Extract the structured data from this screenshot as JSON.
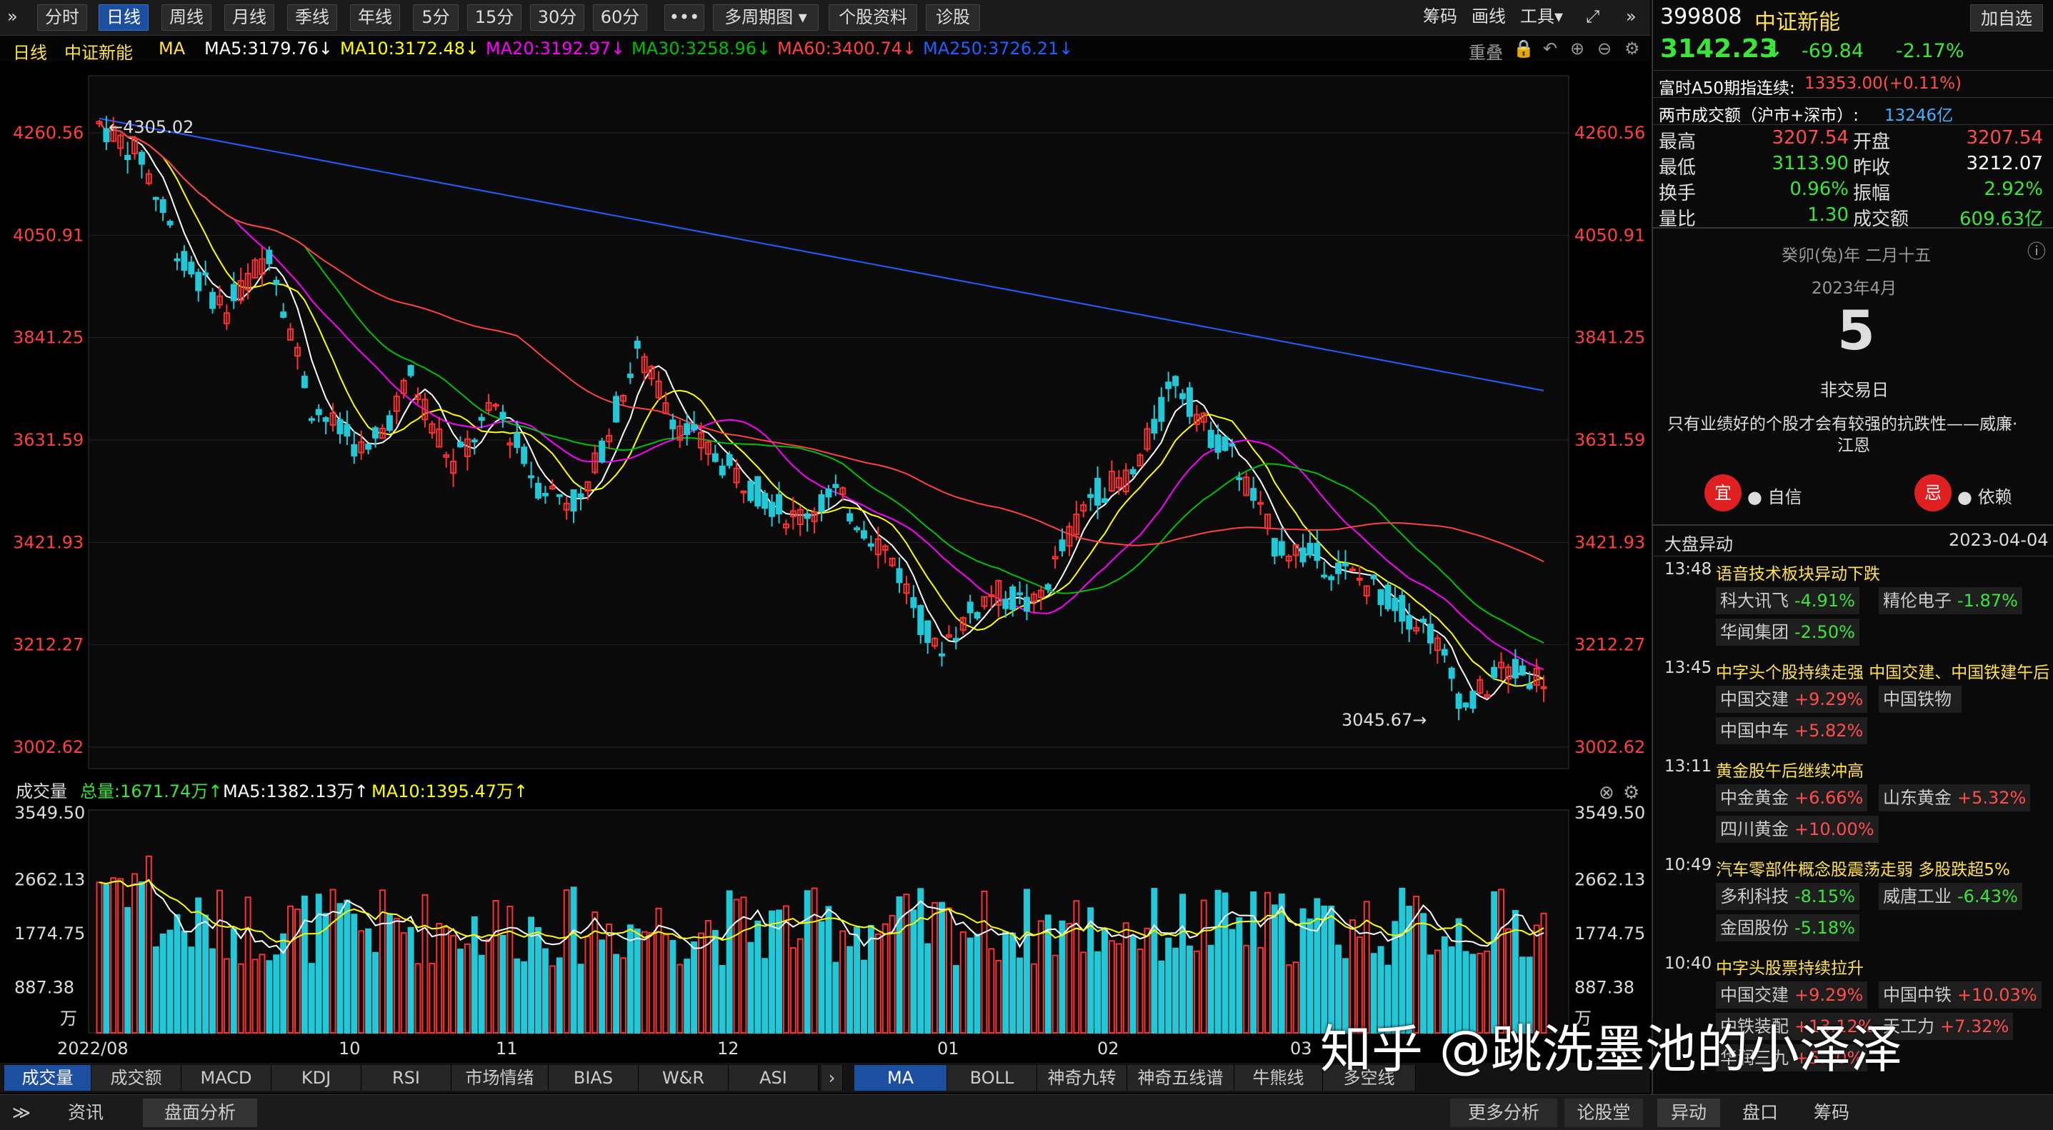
{
  "toolbar": {
    "collapse_icon": "»",
    "periods": [
      "分时",
      "日线",
      "周线",
      "月线",
      "季线",
      "年线",
      "5分",
      "15分",
      "30分",
      "60分"
    ],
    "active_period": "日线",
    "more": "•••",
    "multi": "多周期图",
    "profile": "个股资料",
    "diagnose": "诊股",
    "chips": "筹码",
    "draw": "画线",
    "tools": "工具",
    "expand_icon": "⤢",
    "next_icon": "»"
  },
  "maline": {
    "period": "日线",
    "name": "中证新能",
    "ma": "MA",
    "ma5": "MA5:3179.76↓",
    "ma10": "MA10:3172.48↓",
    "ma20": "MA20:3192.97↓",
    "ma30": "MA30:3258.96↓",
    "ma60": "MA60:3400.74↓",
    "ma250": "MA250:3726.21↓",
    "weight": "重叠"
  },
  "colors": {
    "ma5": "#ffffff",
    "ma10": "#ffff00",
    "ma20": "#ff00ff",
    "ma30": "#00c000",
    "ma60": "#ff4040",
    "ma250": "#2060ff",
    "up": "#ff3030",
    "down": "#20c8d8",
    "price": "#ff4040"
  },
  "chart_data": {
    "type": "candlestick",
    "y_ticks": [
      "4260.56",
      "4050.91",
      "3841.25",
      "3631.59",
      "3421.93",
      "3212.27",
      "3002.62"
    ],
    "ylim": [
      3002.62,
      4260.56
    ],
    "high_label": "←4305.02",
    "low_label": "3045.67→",
    "x_ticks": [
      "2022/08",
      "10",
      "11",
      "12",
      "01",
      "02",
      "03"
    ],
    "ohlc_sample": {
      "n": 160,
      "open_first": 4290,
      "close_last": 3142.23
    },
    "volume": {
      "title": "成交量",
      "total": "总量:1671.74万↑",
      "ma5": "MA5:1382.13万↑",
      "ma10": "MA10:1395.47万↑",
      "y_ticks": [
        "3549.50",
        "2662.13",
        "1774.75",
        "887.38",
        "万"
      ],
      "ylim": [
        0,
        3549.5
      ]
    }
  },
  "indicators": {
    "left": [
      "成交量",
      "成交额",
      "MACD",
      "KDJ",
      "RSI",
      "市场情绪",
      "BIAS",
      "W&R",
      "ASI"
    ],
    "arrow": "›",
    "right": [
      "MA",
      "BOLL",
      "神奇九转",
      "神奇五线谱",
      "牛熊线",
      "多空线"
    ],
    "active_left": "成交量",
    "active_right": "MA"
  },
  "bottombar": {
    "collapse": "≫",
    "news": "资讯",
    "analysis": "盘面分析",
    "more_analysis": "更多分析",
    "forum": "论股堂",
    "tabs": [
      "异动",
      "盘口",
      "筹码"
    ]
  },
  "quote": {
    "code": "399808",
    "name": "中证新能",
    "add": "加自选",
    "price": "3142.23",
    "arrow": "↓",
    "change": "-69.84",
    "pct": "-2.17%",
    "a50_label": "富时A50期指连续:",
    "a50_value": "13353.00(+0.11%)",
    "turnover_label": "两市成交额（沪市+深市）:",
    "turnover_value": "13246亿",
    "stats": [
      {
        "k": "最高",
        "v": "3207.54",
        "c": "red"
      },
      {
        "k": "开盘",
        "v": "3207.54",
        "c": "red"
      },
      {
        "k": "最低",
        "v": "3113.90",
        "c": "green"
      },
      {
        "k": "昨收",
        "v": "3212.07",
        "c": "white"
      },
      {
        "k": "换手",
        "v": "0.96%",
        "c": "green"
      },
      {
        "k": "振幅",
        "v": "2.92%",
        "c": "green"
      },
      {
        "k": "量比",
        "v": "1.30",
        "c": "green"
      },
      {
        "k": "成交额",
        "v": "609.63亿",
        "c": "green"
      }
    ]
  },
  "calendar": {
    "lunar": "癸卯(兔)年 二月十五",
    "info_icon": "ⓘ",
    "month": "2023年4月",
    "day": "5",
    "status": "非交易日",
    "quote1": "只有业绩好的个股才会有较强的抗跌性——威廉·",
    "quote2": "江恩",
    "good": "宜",
    "good_label": "自信",
    "bad": "忌",
    "bad_label": "依赖"
  },
  "alerts": {
    "title": "大盘异动",
    "date": "2023-04-04",
    "items": [
      {
        "time": "13:48",
        "title": "语音技术板块异动下跌",
        "tags": [
          [
            "科大讯飞",
            "-4.91%"
          ],
          [
            "精伦电子",
            "-1.87%"
          ],
          [
            "华闻集团",
            "-2.50%"
          ]
        ]
      },
      {
        "time": "13:45",
        "title": "中字头个股持续走强 中国交建、中国铁建午后",
        "tags": [
          [
            "中国交建",
            "+9.29%"
          ],
          [
            "中国铁物",
            ""
          ],
          [
            "中国中车",
            "+5.82%"
          ]
        ]
      },
      {
        "time": "13:11",
        "title": "黄金股午后继续冲高",
        "tags": [
          [
            "中金黄金",
            "+6.66%"
          ],
          [
            "山东黄金",
            "+5.32%"
          ],
          [
            "四川黄金",
            "+10.00%"
          ]
        ]
      },
      {
        "time": "10:49",
        "title": "汽车零部件概念股震荡走弱 多股跌超5%",
        "tags": [
          [
            "多利科技",
            "-8.15%"
          ],
          [
            "威唐工业",
            "-6.43%"
          ],
          [
            "金固股份",
            "-5.18%"
          ]
        ]
      },
      {
        "time": "10:40",
        "title": "中字头股票持续拉升",
        "tags": [
          [
            "中国交建",
            "+9.29%"
          ],
          [
            "中国中铁",
            "+10.03%"
          ],
          [
            "中铁装配",
            "+13.12%"
          ],
          [
            "天工力",
            "+7.32%"
          ],
          [
            "华润三九",
            "+5.10%"
          ]
        ]
      }
    ]
  },
  "watermark": "知乎 @跳洗墨池的小泽泽"
}
